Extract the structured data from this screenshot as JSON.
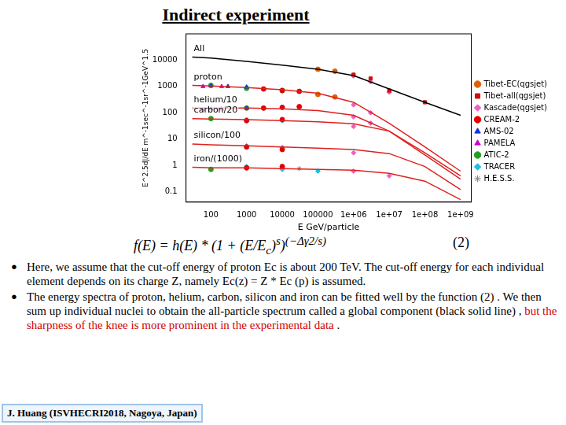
{
  "slide": {
    "title": "Indirect experiment",
    "formula": [
      {
        "text": "f(E) = h(E) * (1 + (E/E",
        "style": "normal"
      },
      {
        "text": "c",
        "style": "sub"
      },
      {
        "text": ")",
        "style": "normal"
      },
      {
        "text": "s",
        "style": "sup"
      },
      {
        "text": ")",
        "style": "normal"
      },
      {
        "text": "(−Δγ2/s)",
        "style": "sup"
      }
    ],
    "formula_number": "(2)",
    "bullets": [
      [
        {
          "text": "Here, we assume that the cut-off energy of proton Ec is about 200 TeV. The cut-off energy for each individual element depends on its charge Z, namely Ec(z) = Z * Ec (p) is assumed.",
          "color": "black"
        }
      ],
      [
        {
          "text": "The energy spectra of proton, helium, carbon, silicon and iron can be fitted well by the function (2) . We then sum up individual nuclei to obtain the all-particle spectrum called a global component (black solid line) , ",
          "color": "black"
        },
        {
          "text": "but the sharpness of the knee is more prominent in the experimental data",
          "color": "red"
        },
        {
          "text": " .",
          "color": "black"
        }
      ]
    ],
    "footer": "J. Huang (ISVHECRI2018, Nagoya, Japan)"
  },
  "chart_data": {
    "type": "scatter",
    "x_label": "E GeV/particle",
    "y_label": "E^2.5dJ/dE m^-1sec^-1sr^-1GeV^1.5",
    "log": true,
    "grid": false,
    "legend": "right",
    "xlim": [
      20,
      2000000000
    ],
    "xticks": [
      100,
      1000,
      10000,
      100000,
      {
        "value": 1000000,
        "label": "1e+06"
      },
      {
        "value": 10000000,
        "label": "1e+07"
      },
      {
        "value": 100000000,
        "label": "1e+08"
      },
      {
        "value": 1000000000,
        "label": "1e+09"
      }
    ],
    "ylim": [
      0.04,
      100000
    ],
    "yticks": [
      0.1,
      1,
      10,
      100,
      1000,
      10000
    ],
    "series": [
      {
        "name": "All",
        "type": "line",
        "color": "#000000",
        "line_style": "solid",
        "x": [
          30,
          100,
          1000,
          10000,
          100000,
          1000000,
          10000000,
          100000000,
          1000000000
        ],
        "values": [
          13000,
          12000,
          9000,
          6500,
          4500,
          2600,
          800,
          250,
          80
        ]
      },
      {
        "name": "proton",
        "type": "line",
        "color": "#e02020",
        "line_style": "solid",
        "x": [
          30,
          100,
          1000,
          10000,
          100000,
          1000000,
          10000000,
          100000000,
          1000000000
        ],
        "values": [
          1100,
          1050,
          900,
          750,
          550,
          250,
          40,
          5,
          0.6
        ]
      },
      {
        "name": "helium/10",
        "type": "line",
        "color": "#e02020",
        "line_style": "solid",
        "x": [
          30,
          100,
          1000,
          10000,
          100000,
          1000000,
          10000000,
          100000000,
          1000000000
        ],
        "values": [
          150,
          150,
          150,
          140,
          120,
          80,
          20,
          2.5,
          0.3
        ]
      },
      {
        "name": "carbon/20",
        "type": "line",
        "color": "#e02020",
        "line_style": "solid",
        "x": [
          30,
          100,
          1000,
          10000,
          100000,
          1000000,
          10000000,
          100000000,
          1000000000
        ],
        "values": [
          60,
          58,
          55,
          50,
          45,
          38,
          20,
          3,
          0.4
        ]
      },
      {
        "name": "silicon/100",
        "type": "line",
        "color": "#e02020",
        "line_style": "solid",
        "x": [
          30,
          100,
          1000,
          10000,
          100000,
          1000000,
          10000000,
          100000000,
          1000000000
        ],
        "values": [
          6.5,
          6,
          5.5,
          5,
          4.5,
          4,
          2.8,
          0.9,
          0.12
        ]
      },
      {
        "name": "iron/(1000)",
        "type": "line",
        "color": "#e02020",
        "line_style": "solid",
        "x": [
          30,
          100,
          1000,
          10000,
          100000,
          1000000,
          10000000,
          100000000,
          1000000000
        ],
        "values": [
          0.85,
          0.8,
          0.8,
          0.75,
          0.7,
          0.65,
          0.5,
          0.25,
          0.05
        ]
      },
      {
        "name": "Tibet-EC(qgsjet)",
        "type": "scatter",
        "color": "#e06000",
        "marker": "circle",
        "x": [
          100000,
          300000,
          100000,
          300000
        ],
        "values": [
          500,
          400,
          4500,
          3800
        ]
      },
      {
        "name": "Tibet-all(qgsjet)",
        "type": "scatter",
        "color": "#d01010",
        "marker": "square",
        "x": [
          1000000,
          3000000,
          10000000,
          100000000
        ],
        "values": [
          2800,
          2000,
          700,
          250
        ]
      },
      {
        "name": "Kascade(qgsjet)",
        "type": "scatter",
        "color": "#f060c0",
        "marker": "diamond",
        "x": [
          1000000,
          3000000,
          10000000,
          1000000,
          3000000,
          1000000,
          3000000,
          1000000,
          1000000,
          1000000,
          10000000
        ],
        "values": [
          2500,
          1500,
          600,
          200,
          100,
          70,
          40,
          30,
          3,
          0.6,
          0.4
        ]
      },
      {
        "name": "CREAM-2",
        "type": "scatter",
        "color": "#e00000",
        "marker": "circle",
        "x": [
          3000,
          10000,
          30000,
          3000,
          10000,
          30000,
          1000,
          10000,
          1000,
          10000,
          1000,
          10000
        ],
        "values": [
          800,
          700,
          650,
          150,
          160,
          170,
          50,
          55,
          5,
          4,
          0.8,
          0.9
        ]
      },
      {
        "name": "AMS-02",
        "type": "scatter",
        "color": "#1030e0",
        "marker": "triangle",
        "x": [
          100,
          300,
          1000,
          100,
          1000
        ],
        "values": [
          1050,
          1000,
          950,
          140,
          150
        ]
      },
      {
        "name": "PAMELA",
        "type": "scatter",
        "color": "#d000d0",
        "marker": "triangle",
        "x": [
          60,
          200,
          60,
          200
        ],
        "values": [
          1000,
          1000,
          130,
          140
        ]
      },
      {
        "name": "ATIC-2",
        "type": "scatter",
        "color": "#20a020",
        "marker": "circle",
        "x": [
          100,
          1000,
          10000,
          1000,
          100,
          100
        ],
        "values": [
          1100,
          850,
          700,
          150,
          60,
          0.7
        ]
      },
      {
        "name": "TRACER",
        "type": "scatter",
        "color": "#20c0e0",
        "marker": "diamond",
        "x": [
          1000,
          10000,
          1000,
          10000,
          1000,
          10000,
          100000
        ],
        "values": [
          55,
          50,
          5.5,
          4.8,
          0.9,
          0.7,
          0.6
        ]
      },
      {
        "name": "H.E.S.S.",
        "type": "scatter",
        "color": "#808080",
        "marker": "star",
        "x": [
          10000,
          30000
        ],
        "values": [
          0.8,
          0.75
        ]
      }
    ]
  }
}
